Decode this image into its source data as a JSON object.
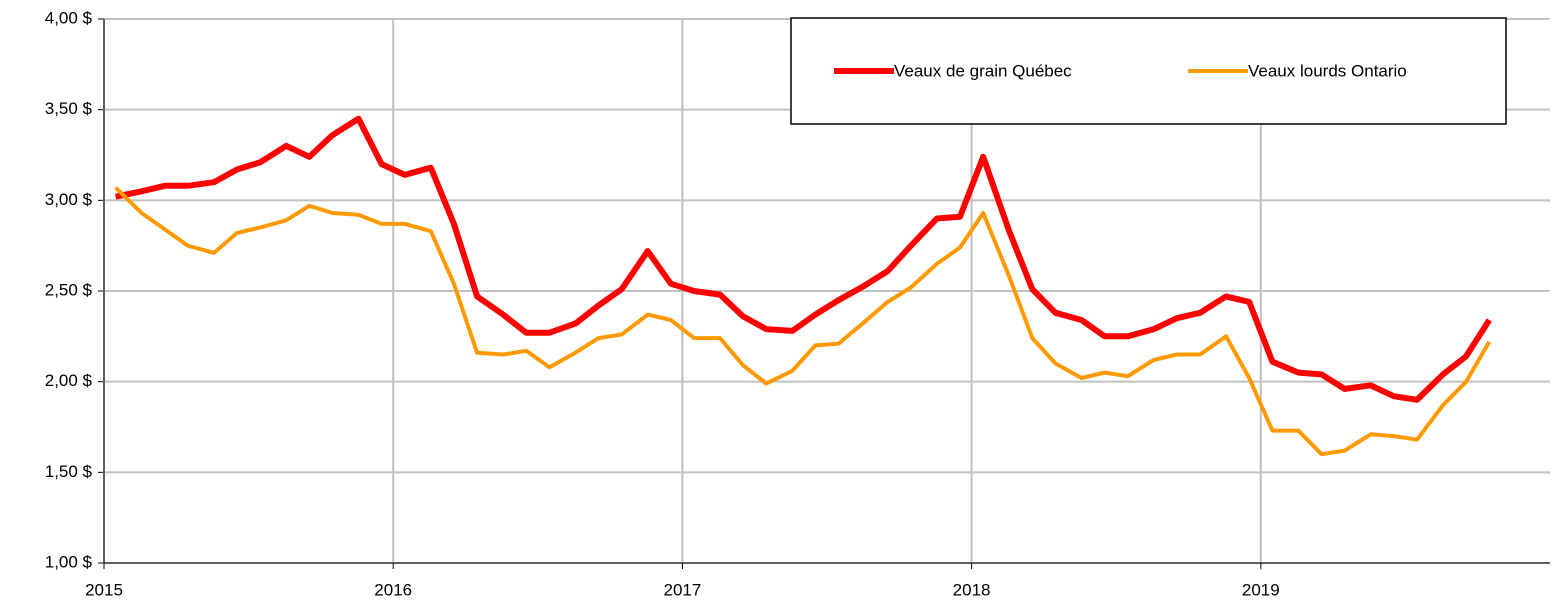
{
  "chart_data": {
    "type": "line",
    "x": [
      2015.04,
      2015.13,
      2015.21,
      2015.29,
      2015.38,
      2015.46,
      2015.54,
      2015.63,
      2015.71,
      2015.79,
      2015.88,
      2015.96,
      2016.04,
      2016.13,
      2016.21,
      2016.29,
      2016.38,
      2016.46,
      2016.54,
      2016.63,
      2016.71,
      2016.79,
      2016.88,
      2016.96,
      2017.04,
      2017.13,
      2017.21,
      2017.29,
      2017.38,
      2017.46,
      2017.54,
      2017.63,
      2017.71,
      2017.79,
      2017.88,
      2017.96,
      2018.04,
      2018.13,
      2018.21,
      2018.29,
      2018.38,
      2018.46,
      2018.54,
      2018.63,
      2018.71,
      2018.79,
      2018.88,
      2018.96,
      2019.04,
      2019.13,
      2019.21,
      2019.29,
      2019.38,
      2019.46,
      2019.54,
      2019.63,
      2019.71,
      2019.79
    ],
    "series": [
      {
        "name": "Veaux de grain Québec",
        "color": "#ff0000",
        "width": 6,
        "values": [
          3.02,
          3.05,
          3.08,
          3.08,
          3.1,
          3.17,
          3.21,
          3.3,
          3.24,
          3.36,
          3.45,
          3.2,
          3.14,
          3.18,
          2.87,
          2.47,
          2.37,
          2.27,
          2.27,
          2.32,
          2.42,
          2.51,
          2.72,
          2.54,
          2.5,
          2.48,
          2.36,
          2.29,
          2.28,
          2.37,
          2.45,
          2.53,
          2.61,
          2.75,
          2.9,
          2.91,
          3.24,
          2.83,
          2.51,
          2.38,
          2.34,
          2.25,
          2.25,
          2.29,
          2.35,
          2.38,
          2.47,
          2.44,
          2.11,
          2.05,
          2.04,
          1.96,
          1.98,
          1.92,
          1.9,
          2.04,
          2.14,
          2.34
        ]
      },
      {
        "name": "Veaux lourds Ontario",
        "color": "#ff9900",
        "width": 4,
        "values": [
          3.07,
          2.93,
          2.84,
          2.75,
          2.71,
          2.82,
          2.85,
          2.89,
          2.97,
          2.93,
          2.92,
          2.87,
          2.87,
          2.83,
          2.54,
          2.16,
          2.15,
          2.17,
          2.08,
          2.16,
          2.24,
          2.26,
          2.37,
          2.34,
          2.24,
          2.24,
          2.09,
          1.99,
          2.06,
          2.2,
          2.21,
          2.33,
          2.44,
          2.52,
          2.65,
          2.74,
          2.93,
          2.58,
          2.24,
          2.1,
          2.02,
          2.05,
          2.03,
          2.12,
          2.15,
          2.15,
          2.25,
          2.02,
          1.73,
          1.73,
          1.6,
          1.62,
          1.71,
          1.7,
          1.68,
          1.87,
          2.0,
          2.22
        ]
      }
    ],
    "xlim": [
      2015,
      2020
    ],
    "xticks": [
      2015,
      2016,
      2017,
      2018,
      2019
    ],
    "ylim": [
      1,
      4
    ],
    "yticks": [
      {
        "value": 1,
        "label": "1,00 $"
      },
      {
        "value": 1.5,
        "label": "1,50 $"
      },
      {
        "value": 2,
        "label": "2,00 $"
      },
      {
        "value": 2.5,
        "label": "2,50 $"
      },
      {
        "value": 3,
        "label": "3,00 $"
      },
      {
        "value": 3.5,
        "label": "3,50 $"
      },
      {
        "value": 4,
        "label": "4,00 $"
      }
    ],
    "grid": true,
    "legend": "top-right"
  }
}
